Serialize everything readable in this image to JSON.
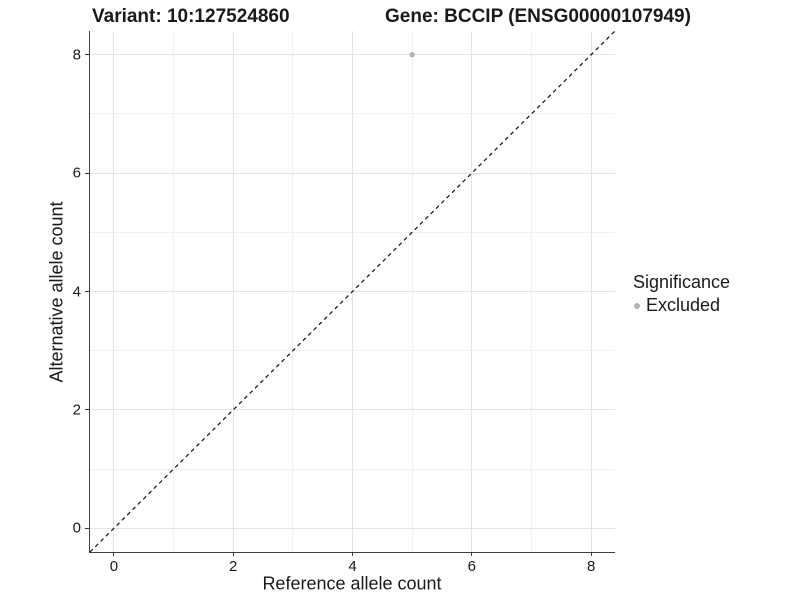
{
  "titles": {
    "variant": "Variant: 10:127524860",
    "gene": "Gene: BCCIP (ENSG00000107949)"
  },
  "chart_data": {
    "type": "scatter",
    "xlabel": "Reference allele count",
    "ylabel": "Alternative allele count",
    "xlim": [
      -0.4,
      8.4
    ],
    "ylim": [
      -0.4,
      8.4
    ],
    "x_major_ticks": [
      0,
      2,
      4,
      6,
      8
    ],
    "y_major_ticks": [
      0,
      2,
      4,
      6,
      8
    ],
    "x_minor_gridlines": [
      1,
      3,
      5,
      7
    ],
    "y_minor_gridlines": [
      1,
      3,
      5,
      7
    ],
    "grid": true,
    "series": [
      {
        "name": "Excluded",
        "color": "#b3b3b3",
        "points": [
          {
            "x": 5,
            "y": 8
          }
        ]
      }
    ],
    "reference_line": {
      "description": "identity line y = x",
      "style": "dashed",
      "color": "#111111",
      "from": [
        -0.4,
        -0.4
      ],
      "to": [
        8.4,
        8.4
      ]
    },
    "legend": {
      "title": "Significance",
      "position": "right",
      "items": [
        {
          "label": "Excluded",
          "color": "#b3b3b3"
        }
      ]
    }
  },
  "colors": {
    "background": "#ffffff",
    "grid_major": "#e3e3e3",
    "grid_minor": "#f1f1f1",
    "axis_line": "#404040",
    "text": "#1a1a1a"
  }
}
